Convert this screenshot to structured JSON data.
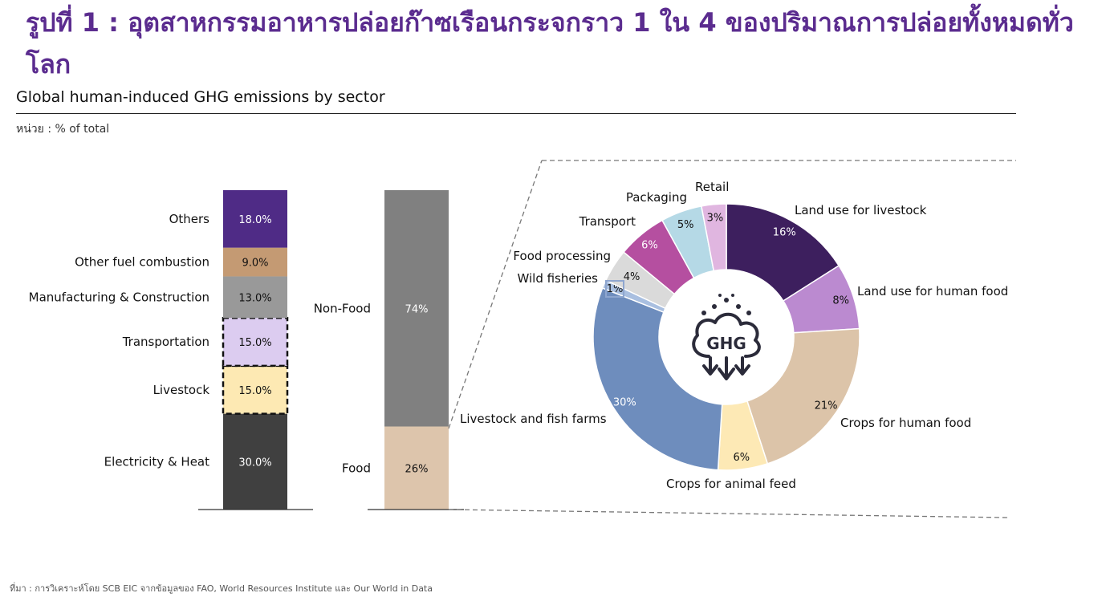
{
  "header": {
    "title": "รูปที่ 1 : อุตสาหกรรมอาหารปล่อยก๊าซเรือนกระจกราว 1 ใน 4 ของปริมาณการปล่อยทั้งหมดทั่วโลก",
    "subtitle": "Global human-induced GHG emissions by sector",
    "unit": "หน่วย : % of total"
  },
  "footer": {
    "source": "ที่มา : การวิเคราะห์โดย SCB EIC จากข้อมูลของ FAO, World Resources Institute และ Our World in Data"
  },
  "center_icon": {
    "name": "ghg-cloud-icon",
    "label": "GHG"
  },
  "chart_data": [
    {
      "type": "bar",
      "stacked": true,
      "categories": [
        "Electricity & Heat",
        "Livestock",
        "Transportation",
        "Manufacturing & Construction",
        "Other fuel combustion",
        "Others"
      ],
      "values": [
        30,
        15,
        15,
        13,
        9,
        18
      ],
      "labels": [
        "30.0%",
        "15.0%",
        "15.0%",
        "13.0%",
        "9.0%",
        "18.0%"
      ],
      "colors": [
        "#404040",
        "#fde9b3",
        "#dcccf0",
        "#999999",
        "#c49a73",
        "#4f2b86"
      ],
      "value_colors": [
        "#ffffff",
        "#111111",
        "#111111",
        "#111111",
        "#111111",
        "#ffffff"
      ],
      "dashed_outline": [
        false,
        true,
        true,
        false,
        false,
        false
      ]
    },
    {
      "type": "bar",
      "stacked": true,
      "categories": [
        "Food",
        "Non-Food"
      ],
      "values": [
        26,
        74
      ],
      "labels": [
        "26%",
        "74%"
      ],
      "colors": [
        "#ddc5ac",
        "#808080"
      ],
      "value_colors": [
        "#111111",
        "#ffffff"
      ],
      "annotation": "Livestock and fish farms"
    },
    {
      "type": "pie",
      "donut": true,
      "categories": [
        "Land use for livestock",
        "Land use for human food",
        "Crops for human food",
        "Crops for animal feed",
        "Livestock and fish farms",
        "Wild fisheries",
        "Food processing",
        "Transport",
        "Packaging",
        "Retail"
      ],
      "values": [
        16,
        8,
        21,
        6,
        30,
        1,
        4,
        6,
        5,
        3
      ],
      "labels": [
        "16%",
        "8%",
        "21%",
        "6%",
        "30%",
        "1%",
        "4%",
        "6%",
        "5%",
        "3%"
      ],
      "colors": [
        "#3d1f5e",
        "#bb8ad0",
        "#dcc4a9",
        "#fde9b5",
        "#6e8dbd",
        "#a9bfe0",
        "#dadada",
        "#b54fa0",
        "#b5d9e6",
        "#e0b6e0"
      ],
      "value_colors": [
        "#ffffff",
        "#111111",
        "#111111",
        "#111111",
        "#ffffff",
        "#111111",
        "#111111",
        "#ffffff",
        "#111111",
        "#111111"
      ]
    }
  ]
}
